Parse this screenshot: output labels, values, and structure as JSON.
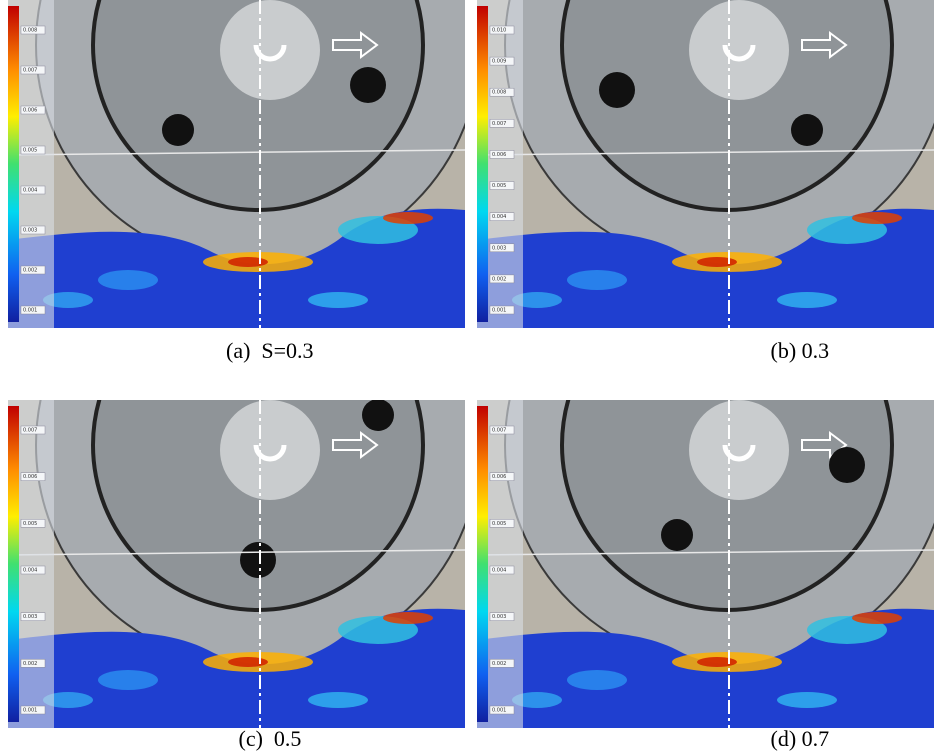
{
  "panels": [
    {
      "caption": "(a)  S=0.3",
      "colorbar_labels": [
        "0.008",
        "0.007",
        "0.006",
        "0.005",
        "0.004",
        "0.003",
        "0.002",
        "0.001"
      ]
    },
    {
      "caption": "(b) 0.3",
      "colorbar_labels": [
        "0.010",
        "0.009",
        "0.008",
        "0.007",
        "0.006",
        "0.005",
        "0.004",
        "0.003",
        "0.002",
        "0.001"
      ]
    },
    {
      "caption": "(c)  0.5",
      "colorbar_labels": [
        "0.007",
        "0.006",
        "0.005",
        "0.004",
        "0.003",
        "0.002",
        "0.001"
      ]
    },
    {
      "caption": "(d) 0.7",
      "colorbar_labels": [
        "0.007",
        "0.006",
        "0.005",
        "0.004",
        "0.003",
        "0.002",
        "0.001"
      ]
    }
  ]
}
